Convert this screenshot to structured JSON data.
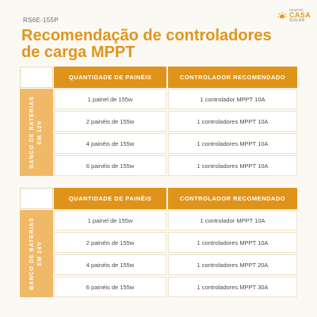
{
  "header": {
    "code": "RS6E-155P",
    "title": "Recomendação de controladores de carga MPPT"
  },
  "logo": {
    "small_top": "SEMPRE",
    "brand_1": "CASA",
    "brand_2": "SOLAR",
    "icon": "sun-icon",
    "accent": "#e59a1a"
  },
  "colors": {
    "header_orange": "#e0931a",
    "side_orange": "#f0b968",
    "title_orange": "#e0961c"
  },
  "tables": [
    {
      "side_line1": "BANCO DE BATERIAS",
      "side_line2": "EM 12V",
      "col1": "QUANTIDADE DE PAINÉIS",
      "col2": "CONTROLADOR RECOMENDADO",
      "rows": [
        {
          "paineis": "1 painel de 155w",
          "controlador": "1 controlador MPPT 10A"
        },
        {
          "paineis": "2 painéis de 155w",
          "controlador": "1 controladores MPPT 10A"
        },
        {
          "paineis": "4 painéis de 155w",
          "controlador": "1 controladores MPPT 10A"
        },
        {
          "paineis": "6 painéis de 155w",
          "controlador": "1 controladores MPPT 10A"
        }
      ]
    },
    {
      "side_line1": "BANCO DE BATERIAS",
      "side_line2": "EM 24V",
      "col1": "QUANTIDADE DE PAINÉIS",
      "col2": "CONTROLADOR RECOMENDADO",
      "rows": [
        {
          "paineis": "1 painel de 155w",
          "controlador": "1 controlador MPPT 10A"
        },
        {
          "paineis": "2 painéis de 155w",
          "controlador": "1 controladores MPPT 10A"
        },
        {
          "paineis": "4 painéis de 155w",
          "controlador": "1 controladores MPPT 20A"
        },
        {
          "paineis": "6 painéis de 155w",
          "controlador": "1 controladores MPPT 30A"
        }
      ]
    }
  ]
}
